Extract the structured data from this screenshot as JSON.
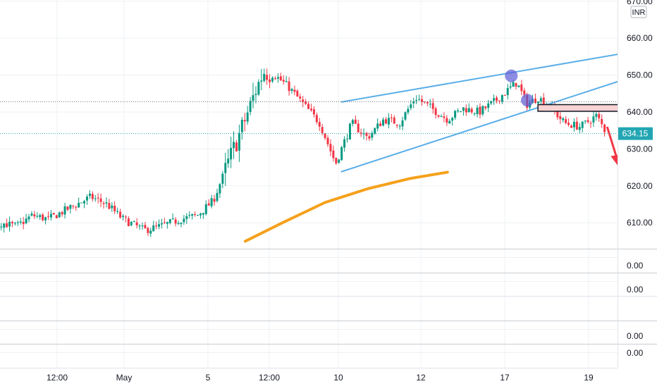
{
  "instrument": {
    "currency": "INR"
  },
  "colors": {
    "up": "#089981",
    "down": "#f23645",
    "channel": "#5aaee8",
    "ema": "#f5a11c",
    "marker": "#5b5bd6",
    "arrow": "#f23645",
    "zone_fill": "#f9d3d3",
    "price_badge": "#22a6b3"
  },
  "chart_data": {
    "type": "candlestick",
    "yaxis": {
      "ticks": [
        "670.00",
        "660.00",
        "650.00",
        "640.00",
        "630.00",
        "620.00",
        "610.00"
      ],
      "ylim": [
        603.5,
        671
      ]
    },
    "xaxis": {
      "ticks": [
        "12:00",
        "May",
        "5",
        "12:00",
        "10",
        "12",
        "17",
        "19"
      ]
    },
    "current_price": {
      "label": "634.15",
      "value": 634.15
    },
    "reference_level": 642.8,
    "pattern": "rising wedge",
    "ema": [
      [
        0.7,
        605
      ],
      [
        1.4,
        610
      ],
      [
        2.2,
        615.5
      ],
      [
        3.0,
        619.2
      ],
      [
        3.8,
        622
      ],
      [
        4.5,
        623.7
      ]
    ],
    "price_path": [
      [
        -5.6,
        605
      ],
      [
        -4.2,
        604
      ],
      [
        -3.9,
        610
      ],
      [
        -3.6,
        609
      ],
      [
        -3.3,
        612
      ],
      [
        -3.0,
        611
      ],
      [
        -2.6,
        614
      ],
      [
        -2.2,
        617
      ],
      [
        -1.9,
        615
      ],
      [
        -1.6,
        611
      ],
      [
        -1.2,
        608
      ],
      [
        -0.9,
        609
      ],
      [
        -0.5,
        611
      ],
      [
        -0.2,
        612
      ],
      [
        0.1,
        616
      ],
      [
        0.4,
        627
      ],
      [
        0.7,
        638
      ],
      [
        0.9,
        646
      ],
      [
        1.05,
        651
      ],
      [
        1.25,
        650
      ],
      [
        1.5,
        647
      ],
      [
        1.8,
        642
      ],
      [
        2.1,
        637
      ],
      [
        2.4,
        626
      ],
      [
        2.7,
        637
      ],
      [
        3.0,
        633
      ],
      [
        3.3,
        638
      ],
      [
        3.6,
        637
      ],
      [
        3.9,
        644
      ],
      [
        4.2,
        641
      ],
      [
        4.5,
        638
      ],
      [
        4.8,
        641
      ],
      [
        5.1,
        640
      ],
      [
        5.4,
        643
      ],
      [
        5.8,
        648
      ],
      [
        6.0,
        642
      ],
      [
        6.2,
        644
      ],
      [
        6.45,
        641
      ],
      [
        6.7,
        637
      ],
      [
        7.0,
        636
      ],
      [
        7.3,
        639
      ],
      [
        7.5,
        634
      ]
    ],
    "rising_wedge": {
      "upper": [
        [
          2.5,
          642.7
        ],
        [
          8.25,
          657
        ]
      ],
      "lower": [
        [
          2.5,
          623.8
        ],
        [
          8.5,
          652
        ]
      ]
    },
    "pivots": [
      {
        "x": 5.7,
        "y": 649.8
      },
      {
        "x": 6.0,
        "y": 643.2
      }
    ],
    "breakdown_zone": {
      "x_start": 6.2,
      "x_end": 7.95,
      "y_low": 640.2,
      "y_high": 642
    },
    "bearish_arrow": {
      "from": [
        7.5,
        636
      ],
      "to": [
        7.7,
        625
      ]
    }
  },
  "indicator_panes": [
    {
      "value": "0.00"
    },
    {
      "value": "0.00"
    },
    {
      "value": "0.00"
    },
    {
      "value": "0.00"
    }
  ]
}
